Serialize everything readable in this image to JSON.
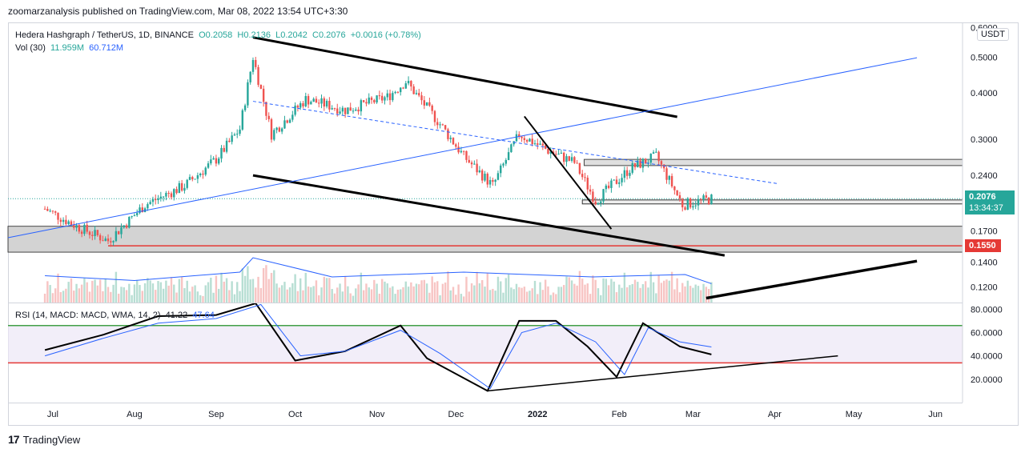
{
  "attribution": "zoomarzanalysis published on TradingView.com, Mar 08, 2022 13:54 UTC+3:30",
  "legend": {
    "symbol": "Hedera Hashgraph / TetherUS, 1D, BINANCE",
    "open": "O0.2058",
    "high": "H0.2136",
    "low": "L0.2042",
    "close": "C0.2076",
    "change": "+0.0016 (+0.78%)",
    "vol_label": "Vol (30)",
    "vol_value": "11.959M",
    "vol_ma": "60.712M"
  },
  "rsi_legend": {
    "label": "RSI (14, MACD: MACD, WMA, 14, 2)",
    "value1": "41.22",
    "value2": "47.64"
  },
  "currency_button": "USDT",
  "price_tag": {
    "price": "0.2076",
    "countdown": "13:34:37"
  },
  "level_tag": "0.1550",
  "footer_logo": "TradingView",
  "colors": {
    "up": "#26a69a",
    "down": "#ef5350",
    "accent": "#2962ff",
    "red_line": "#e53935",
    "green_line": "#43a047"
  },
  "chart_data": [
    {
      "type": "candlestick",
      "title": "Hedera Hashgraph / TetherUS, 1D, BINANCE",
      "yscale": "log",
      "ylim": [
        0.109,
        0.62
      ],
      "y_ticks": [
        "0.6000",
        "0.5000",
        "0.4000",
        "0.3000",
        "0.2400",
        "0.1700",
        "0.1400",
        "0.1200"
      ],
      "x_ticks": [
        "Jul",
        "Aug",
        "Sep",
        "Oct",
        "Nov",
        "Dec",
        "2022",
        "Feb",
        "Mar",
        "Apr",
        "May",
        "Jun"
      ],
      "last_price": 0.2076,
      "horizontal_levels": [
        0.155
      ],
      "zones": [
        [
          0.255,
          0.265
        ],
        [
          0.149,
          0.175
        ]
      ],
      "series": [
        {
          "name": "close",
          "x": [
            "2021-06-28",
            "2021-07-10",
            "2021-07-22",
            "2021-08-05",
            "2021-08-20",
            "2021-09-01",
            "2021-09-10",
            "2021-09-15",
            "2021-09-22",
            "2021-10-05",
            "2021-10-20",
            "2021-11-05",
            "2021-11-12",
            "2021-11-25",
            "2021-12-04",
            "2021-12-15",
            "2021-12-25",
            "2022-01-05",
            "2022-01-15",
            "2022-01-23",
            "2022-02-05",
            "2022-02-15",
            "2022-02-25",
            "2022-03-08"
          ],
          "y": [
            0.195,
            0.175,
            0.16,
            0.2,
            0.225,
            0.265,
            0.32,
            0.5,
            0.31,
            0.385,
            0.36,
            0.39,
            0.43,
            0.33,
            0.27,
            0.225,
            0.31,
            0.28,
            0.26,
            0.205,
            0.25,
            0.27,
            0.2,
            0.2076
          ]
        }
      ]
    },
    {
      "type": "bar",
      "title": "Vol (30)",
      "series": [
        {
          "name": "volume",
          "x": [
            "2021-06-28",
            "2021-08-01",
            "2021-09-10",
            "2021-09-15",
            "2021-10-15",
            "2021-12-04",
            "2022-01-22",
            "2022-02-26",
            "2022-03-08"
          ],
          "values": [
            45,
            25,
            60,
            120,
            40,
            60,
            40,
            50,
            11.959
          ]
        }
      ]
    },
    {
      "type": "line",
      "title": "RSI (14, MACD: MACD, WMA, 14, 2)",
      "ylim": [
        0,
        85
      ],
      "y_ticks": [
        "80.0000",
        "60.0000",
        "40.0000",
        "20.0000"
      ],
      "horizontal_levels": [
        66,
        34
      ],
      "series": [
        {
          "name": "RSI",
          "x": [
            "2021-06-28",
            "2021-07-20",
            "2021-08-10",
            "2021-09-01",
            "2021-09-16",
            "2021-10-01",
            "2021-10-20",
            "2021-11-10",
            "2021-11-20",
            "2021-12-13",
            "2021-12-25",
            "2022-01-08",
            "2022-01-20",
            "2022-01-31",
            "2022-02-10",
            "2022-02-24",
            "2022-03-08"
          ],
          "y": [
            45,
            58,
            74,
            75,
            92,
            36,
            44,
            66,
            38,
            10,
            70,
            70,
            48,
            22,
            68,
            48,
            41.22
          ]
        },
        {
          "name": "WMA",
          "x": [
            "2021-06-28",
            "2021-07-20",
            "2021-08-10",
            "2021-09-01",
            "2021-09-18",
            "2021-10-03",
            "2021-10-20",
            "2021-11-10",
            "2021-11-25",
            "2021-12-14",
            "2021-12-26",
            "2022-01-08",
            "2022-01-23",
            "2022-02-03",
            "2022-02-12",
            "2022-02-24",
            "2022-03-08"
          ],
          "y": [
            40,
            55,
            68,
            72,
            84,
            40,
            44,
            62,
            42,
            12,
            60,
            68,
            52,
            24,
            64,
            52,
            47.64
          ]
        }
      ]
    }
  ]
}
